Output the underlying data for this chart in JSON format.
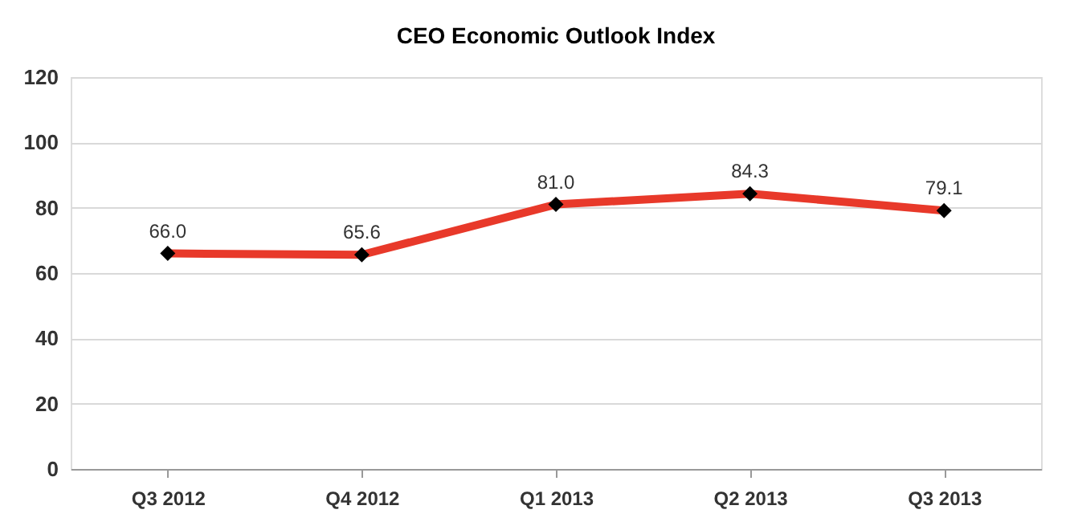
{
  "chart_data": {
    "type": "line",
    "title": "CEO Economic Outlook Index",
    "categories": [
      "Q3 2012",
      "Q4 2012",
      "Q1 2013",
      "Q2 2013",
      "Q3 2013"
    ],
    "series": [
      {
        "color": "#e8392a",
        "values": [
          66.0,
          65.6,
          81.0,
          84.3,
          79.1
        ],
        "value_labels": [
          "66.0",
          "65.6",
          "81.0",
          "84.3",
          "79.1"
        ]
      }
    ],
    "ylim": [
      0,
      120
    ],
    "yticks": [
      0,
      20,
      40,
      60,
      80,
      100,
      120
    ],
    "grid": "y",
    "marker": "diamond",
    "line_style": "solid",
    "legend": false
  }
}
